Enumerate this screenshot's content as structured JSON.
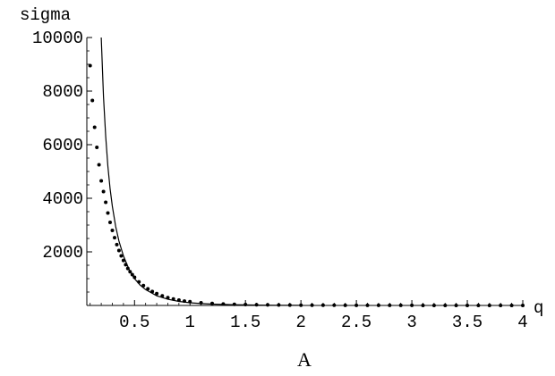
{
  "chart_data": {
    "type": "scatter",
    "xlabel": "q",
    "ylabel": "sigma",
    "caption": "A",
    "xlim": [
      0.07,
      4.0
    ],
    "ylim": [
      0,
      10000
    ],
    "xticks": [
      0.5,
      1,
      1.5,
      2,
      2.5,
      3,
      3.5,
      4
    ],
    "xtick_labels": [
      "0.5",
      "1",
      "1.5",
      "2",
      "2.5",
      "3",
      "3.5",
      "4"
    ],
    "yticks": [
      2000,
      4000,
      6000,
      8000,
      10000
    ],
    "ytick_labels": [
      "2000",
      "4000",
      "6000",
      "8000",
      "10000"
    ],
    "grid": false,
    "series": [
      {
        "kind": "points",
        "x": [
          0.1,
          0.12,
          0.14,
          0.16,
          0.18,
          0.2,
          0.22,
          0.24,
          0.26,
          0.28,
          0.3,
          0.32,
          0.34,
          0.36,
          0.38,
          0.4,
          0.42,
          0.44,
          0.46,
          0.48,
          0.5,
          0.54,
          0.58,
          0.62,
          0.66,
          0.7,
          0.75,
          0.8,
          0.85,
          0.9,
          0.95,
          1.0,
          1.1,
          1.2,
          1.3,
          1.4,
          1.5,
          1.6,
          1.7,
          1.8,
          1.9,
          2.0,
          2.1,
          2.2,
          2.3,
          2.4,
          2.5,
          2.6,
          2.7,
          2.8,
          2.9,
          3.0,
          3.1,
          3.2,
          3.3,
          3.4,
          3.5,
          3.6,
          3.7,
          3.8,
          3.9,
          4.0
        ],
        "y": [
          8950,
          7650,
          6650,
          5900,
          5250,
          4650,
          4250,
          3850,
          3450,
          3100,
          2800,
          2530,
          2270,
          2050,
          1850,
          1680,
          1520,
          1380,
          1260,
          1150,
          1050,
          880,
          740,
          620,
          520,
          440,
          360,
          290,
          240,
          200,
          165,
          140,
          100,
          75,
          55,
          42,
          32,
          25,
          20,
          16,
          13,
          10,
          8,
          7,
          6,
          5,
          4,
          3,
          3,
          2,
          2,
          2,
          1,
          1,
          1,
          1,
          1,
          1,
          1,
          0,
          0,
          0
        ]
      },
      {
        "kind": "curve",
        "x": [
          0.2,
          0.22,
          0.24,
          0.26,
          0.28,
          0.3,
          0.33,
          0.36,
          0.4,
          0.45,
          0.5,
          0.55,
          0.6,
          0.7,
          0.8,
          0.9,
          1.0,
          1.1,
          1.2,
          1.3,
          1.4,
          1.5,
          1.6,
          1.7,
          1.8,
          1.9,
          2.0
        ],
        "y": [
          10000,
          7800,
          6300,
          5200,
          4350,
          3700,
          2950,
          2400,
          1850,
          1350,
          1000,
          760,
          590,
          360,
          230,
          150,
          100,
          70,
          50,
          36,
          26,
          19,
          14,
          10,
          7,
          5,
          4
        ]
      }
    ]
  }
}
